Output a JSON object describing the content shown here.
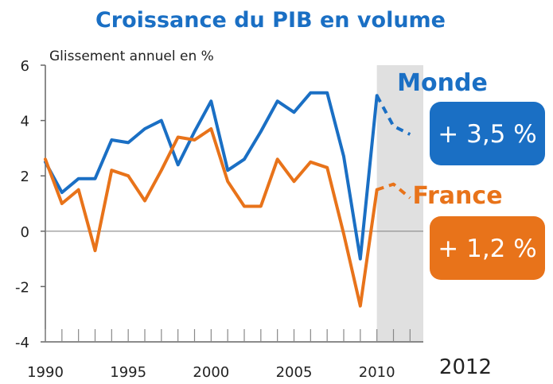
{
  "chart_data": {
    "type": "line",
    "title": "Croissance du PIB en volume",
    "subtitle": "Glissement annuel en %",
    "xlabel": "",
    "ylabel": "",
    "xlim": [
      1990,
      2012.8
    ],
    "ylim": [
      -4,
      6
    ],
    "y_ticks": [
      6,
      4,
      2,
      0,
      -2,
      -4
    ],
    "x_tick_labels": [
      "1990",
      "1995",
      "2000",
      "2005",
      "2010"
    ],
    "x_extra_label": "2012",
    "forecast_period": [
      2010,
      2012.8
    ],
    "grid": false,
    "series": [
      {
        "name": "Monde",
        "color": "#1a6fc4",
        "x": [
          1990,
          1991,
          1992,
          1993,
          1994,
          1995,
          1996,
          1997,
          1998,
          1999,
          2000,
          2001,
          2002,
          2003,
          2004,
          2005,
          2006,
          2007,
          2008,
          2009,
          2010
        ],
        "values": [
          2.5,
          1.4,
          1.9,
          1.9,
          3.3,
          3.2,
          3.7,
          4.0,
          2.4,
          3.6,
          4.7,
          2.2,
          2.6,
          3.6,
          4.7,
          4.3,
          5.0,
          5.0,
          2.7,
          -1.0,
          4.9
        ],
        "forecast_x": [
          2010,
          2011,
          2012
        ],
        "forecast_values": [
          4.9,
          3.8,
          3.5
        ],
        "badge": "+ 3,5 %"
      },
      {
        "name": "France",
        "color": "#e8731a",
        "x": [
          1990,
          1991,
          1992,
          1993,
          1994,
          1995,
          1996,
          1997,
          1998,
          1999,
          2000,
          2001,
          2002,
          2003,
          2004,
          2005,
          2006,
          2007,
          2008,
          2009,
          2010
        ],
        "values": [
          2.6,
          1.0,
          1.5,
          -0.7,
          2.2,
          2.0,
          1.1,
          2.2,
          3.4,
          3.3,
          3.7,
          1.8,
          0.9,
          0.9,
          2.6,
          1.8,
          2.5,
          2.3,
          -0.1,
          -2.7,
          1.5
        ],
        "forecast_x": [
          2010,
          2011,
          2012
        ],
        "forecast_values": [
          1.5,
          1.7,
          1.2
        ],
        "badge": "+ 1,2 %"
      }
    ]
  }
}
